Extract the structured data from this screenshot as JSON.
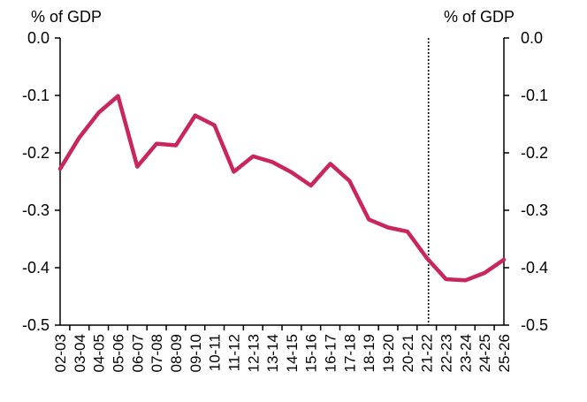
{
  "chart_data": {
    "type": "line",
    "left_axis_unit": "% of GDP",
    "right_axis_unit": "% of GDP",
    "ylim": [
      -0.5,
      0.0
    ],
    "y_ticks": [
      "0.0",
      "-0.1",
      "-0.2",
      "-0.3",
      "-0.4",
      "-0.5"
    ],
    "y_tick_values": [
      0.0,
      -0.1,
      -0.2,
      -0.3,
      -0.4,
      -0.5
    ],
    "grid": false,
    "categories": [
      "02-03",
      "03-04",
      "04-05",
      "05-06",
      "06-07",
      "07-08",
      "08-09",
      "09-10",
      "10-11",
      "11-12",
      "12-13",
      "13-14",
      "14-15",
      "15-16",
      "16-17",
      "17-18",
      "18-19",
      "19-20",
      "20-21",
      "21-22",
      "22-23",
      "23-24",
      "24-25",
      "25-26"
    ],
    "series": [
      {
        "values": [
          -0.228,
          -0.173,
          -0.13,
          -0.101,
          -0.224,
          -0.184,
          -0.187,
          -0.135,
          -0.152,
          -0.233,
          -0.206,
          -0.216,
          -0.234,
          -0.257,
          -0.219,
          -0.249,
          -0.316,
          -0.33,
          -0.337,
          -0.383,
          -0.42,
          -0.422,
          -0.409,
          -0.386
        ],
        "color": "#c8265c"
      }
    ],
    "forecast_divider_after": "21-22"
  }
}
